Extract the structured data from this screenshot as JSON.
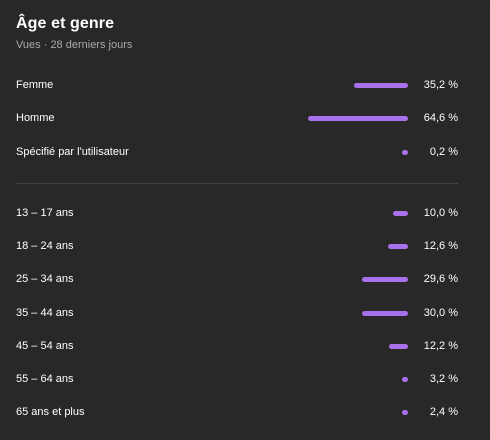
{
  "header": {
    "title": "Âge et genre",
    "subtitle": "Vues · 28 derniers jours"
  },
  "bar_color": "#a970ec",
  "gender": [
    {
      "label": "Femme",
      "value": "35,2 %",
      "percent": 35.2
    },
    {
      "label": "Homme",
      "value": "64,6 %",
      "percent": 64.6
    },
    {
      "label": "Spécifié par l'utilisateur",
      "value": "0,2 %",
      "percent": 0.2
    }
  ],
  "age": [
    {
      "label": "13 – 17 ans",
      "value": "10,0 %",
      "percent": 10.0
    },
    {
      "label": "18 – 24 ans",
      "value": "12,6 %",
      "percent": 12.6
    },
    {
      "label": "25 – 34 ans",
      "value": "29,6 %",
      "percent": 29.6
    },
    {
      "label": "35 – 44 ans",
      "value": "30,0 %",
      "percent": 30.0
    },
    {
      "label": "45 – 54 ans",
      "value": "12,2 %",
      "percent": 12.2
    },
    {
      "label": "55 – 64 ans",
      "value": "3,2 %",
      "percent": 3.2
    },
    {
      "label": "65 ans et plus",
      "value": "2,4 %",
      "percent": 2.4
    }
  ]
}
